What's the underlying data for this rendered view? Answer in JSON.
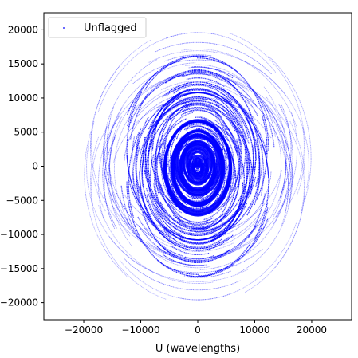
{
  "chart_data": {
    "type": "scatter",
    "title": "",
    "xlabel": "U (wavelengths)",
    "ylabel": "",
    "xlim": [
      -27000,
      27000
    ],
    "ylim": [
      -22500,
      22500
    ],
    "xticks": [
      -20000,
      -10000,
      0,
      10000,
      20000
    ],
    "yticks": [
      20000,
      15000,
      10000,
      5000,
      0,
      -5000,
      -10000,
      -15000,
      -20000
    ],
    "xtick_labels": [
      "−20000",
      "−10000",
      "0",
      "10000",
      "20000"
    ],
    "ytick_labels": [
      "20000",
      "15000",
      "10000",
      "5000",
      "0",
      "−5000",
      "−10000",
      "−15000",
      "−20000"
    ],
    "legend": {
      "position": "top-left",
      "entries": [
        "Unflagged"
      ]
    },
    "grid": false,
    "series": [
      {
        "name": "Unflagged",
        "color": "#0000ff",
        "marker": "point",
        "pattern": "elliptical uv-coverage tracks, symmetric about origin, dense within |U|<=14000 and |V|<=15000, sparse outer tracks to |U|~22000 and |V|~20000",
        "outer_extent": {
          "u_max": 22000,
          "v_max": 20000
        },
        "dense_extent": {
          "u_max": 14000,
          "v_max": 15000
        }
      }
    ]
  }
}
